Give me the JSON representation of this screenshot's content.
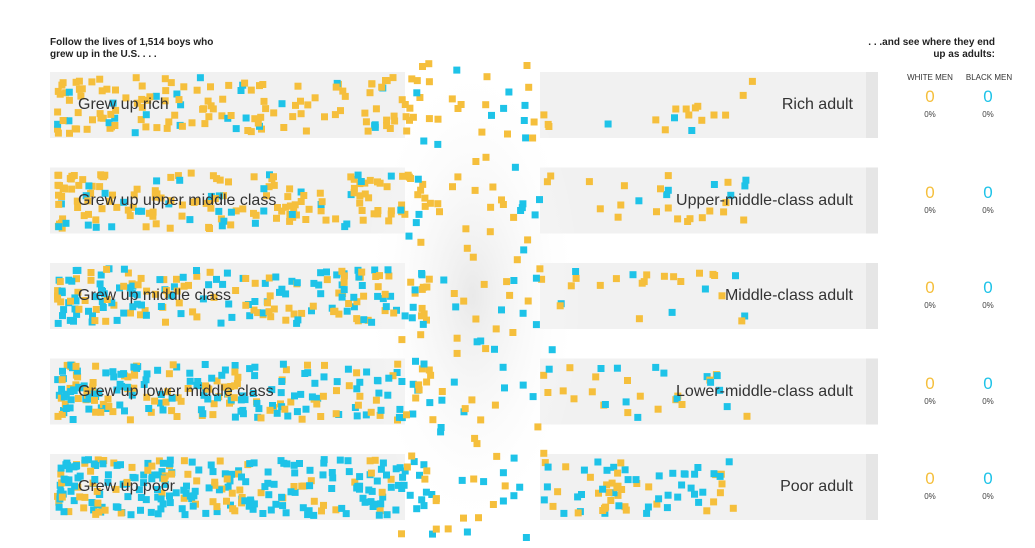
{
  "intro": {
    "left_line1": "Follow the lives of  1,514  boys who",
    "left_line2": "grew up in the U.S. . . .",
    "right_line1": ". . .and see where they end",
    "right_line2": "up as adults:"
  },
  "columns": {
    "white": "WHITE MEN",
    "black": "BLACK MEN"
  },
  "colors": {
    "white": "#f5bf3c",
    "black": "#1ec3e8",
    "band": "#f1f1f1",
    "band_edge": "#e6e6e6"
  },
  "chart_data": {
    "type": "flow-dot",
    "total_boys": "1,514",
    "rows": [
      {
        "start_label": "Grew up rich",
        "end_label": "Rich adult",
        "white_count": "0",
        "white_pct": "0%",
        "black_count": "0",
        "black_pct": "0%",
        "density_white": 0.82,
        "density_black": 0.18,
        "dots_left": 150,
        "dots_right": 16
      },
      {
        "start_label": "Grew up upper middle class",
        "end_label": "Upper-middle-class adult",
        "white_count": "0",
        "white_pct": "0%",
        "black_count": "0",
        "black_pct": "0%",
        "density_white": 0.75,
        "density_black": 0.25,
        "dots_left": 180,
        "dots_right": 26
      },
      {
        "start_label": "Grew up middle class",
        "end_label": "Middle-class adult",
        "white_count": "0",
        "white_pct": "0%",
        "black_count": "0",
        "black_pct": "0%",
        "density_white": 0.5,
        "density_black": 0.5,
        "dots_left": 200,
        "dots_right": 24
      },
      {
        "start_label": "Grew up lower middle class",
        "end_label": "Lower-middle-class adult",
        "white_count": "0",
        "white_pct": "0%",
        "black_count": "0",
        "black_pct": "0%",
        "density_white": 0.45,
        "density_black": 0.55,
        "dots_left": 230,
        "dots_right": 30
      },
      {
        "start_label": "Grew up poor",
        "end_label": "Poor adult",
        "white_count": "0",
        "white_pct": "0%",
        "black_count": "0",
        "black_pct": "0%",
        "density_white": 0.3,
        "density_black": 0.7,
        "dots_left": 260,
        "dots_right": 70
      }
    ]
  }
}
